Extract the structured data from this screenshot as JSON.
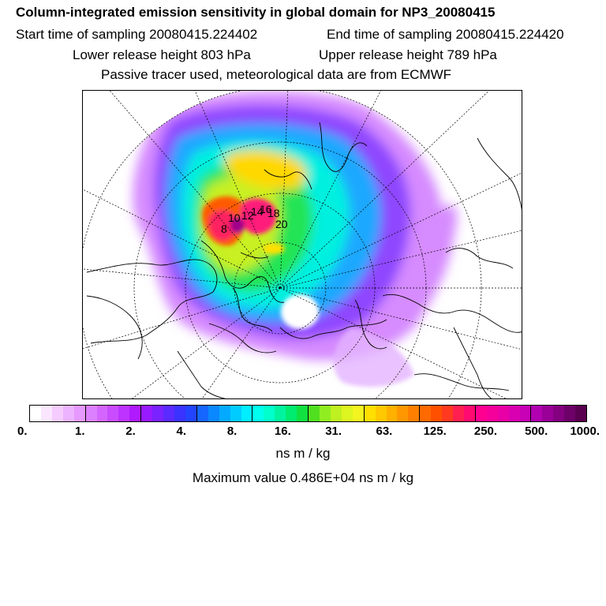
{
  "header": {
    "title": "Column-integrated emission sensitivity in global domain for NP3_20080415",
    "start_label": "Start time of sampling 20080415.224402",
    "end_label": "End time of sampling 20080415.224420",
    "lower_label": "Lower release height  803 hPa",
    "upper_label": "Upper release height  789 hPa",
    "tracer_label": "Passive tracer used, meteorological data are from ECMWF"
  },
  "map": {
    "projection": "north-polar-stereographic",
    "point_labels": [
      "8",
      "10",
      "12",
      "14",
      "16",
      "18",
      "20"
    ]
  },
  "colorbar": {
    "colors": [
      "#ffffff",
      "#fbe6ff",
      "#f5ccff",
      "#eeb3ff",
      "#e699ff",
      "#dd80ff",
      "#d466ff",
      "#c94dff",
      "#bd33ff",
      "#b01aff",
      "#9a1aff",
      "#7a22ff",
      "#5a2aff",
      "#3a32ff",
      "#2244ff",
      "#1466ff",
      "#0a88ff",
      "#04aaff",
      "#00ccff",
      "#00eeff",
      "#00ffee",
      "#00ffcc",
      "#00f4a0",
      "#00ec70",
      "#10e040",
      "#50e020",
      "#90ee20",
      "#bff020",
      "#ddf520",
      "#f4f520",
      "#ffe000",
      "#ffc800",
      "#ffb000",
      "#ff9800",
      "#ff8000",
      "#ff6a00",
      "#ff5000",
      "#ff3a20",
      "#ff2050",
      "#ff0a70",
      "#ff0090",
      "#f5009a",
      "#e800a6",
      "#d800b0",
      "#c800b6",
      "#b000b0",
      "#9a0098",
      "#840080",
      "#6e006a",
      "#5a0050"
    ],
    "tick_labels": [
      "0.",
      "1.",
      "2.",
      "4.",
      "8.",
      "16.",
      "31.",
      "63.",
      "125.",
      "250.",
      "500.",
      "1000."
    ],
    "units": "ns m / kg",
    "max_label": "Maximum value  0.486E+04 ns m / kg"
  }
}
